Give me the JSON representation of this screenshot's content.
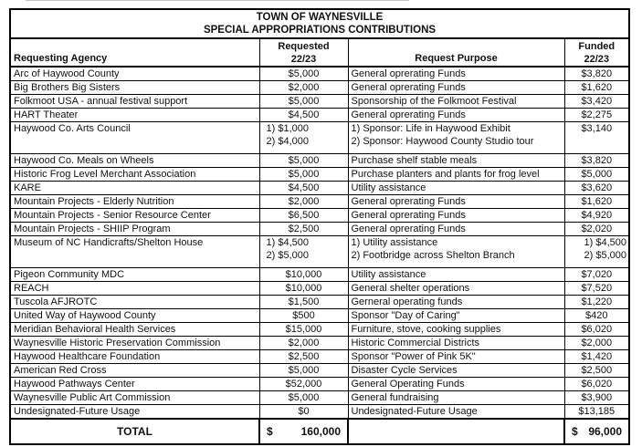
{
  "title": {
    "line1": "TOWN OF WAYNESVILLE",
    "line2": "SPECIAL APPROPRIATIONS CONTRIBUTIONS"
  },
  "header": {
    "agency": "Requesting Agency",
    "requested": [
      "Requested",
      "22/23"
    ],
    "purpose": "Request Purpose",
    "funded": [
      "Funded",
      "22/23"
    ]
  },
  "rows": [
    {
      "agency": "Arc of Haywood County",
      "requested": [
        "$5,000"
      ],
      "purpose": [
        "General oprerating Funds"
      ],
      "funded": [
        "$3,820"
      ],
      "tall": false
    },
    {
      "agency": "Big Brothers Big Sisters",
      "requested": [
        "$2,000"
      ],
      "purpose": [
        "General oprerating Funds"
      ],
      "funded": [
        "$1,620"
      ],
      "tall": false
    },
    {
      "agency": "Folkmoot USA - annual festival support",
      "requested": [
        "$5,000"
      ],
      "purpose": [
        "Sponsorship of the Folkmoot Festival"
      ],
      "funded": [
        "$3,420"
      ],
      "tall": false
    },
    {
      "agency": "HART Theater",
      "requested": [
        "$4,500"
      ],
      "purpose": [
        "General oprerating Funds"
      ],
      "funded": [
        "$2,275"
      ],
      "tall": false
    },
    {
      "agency": "Haywood Co. Arts Council",
      "requested": [
        "1) $1,000",
        "2) $4,000"
      ],
      "purpose": [
        "1) Sponsor: Life in Haywood Exhibit",
        "2) Sponsor: Haywood County Studio tour"
      ],
      "funded": [
        "$3,140"
      ],
      "tall": true
    },
    {
      "agency": "Haywood Co. Meals on Wheels",
      "requested": [
        "$5,000"
      ],
      "purpose": [
        "Purchase shelf stable meals"
      ],
      "funded": [
        "$3,820"
      ],
      "tall": false
    },
    {
      "agency": "Historic Frog Level Merchant Association",
      "requested": [
        "$5,000"
      ],
      "purpose": [
        "Purchase planters and plants for frog level"
      ],
      "funded": [
        "$5,000"
      ],
      "tall": false
    },
    {
      "agency": "KARE",
      "requested": [
        "$4,500"
      ],
      "purpose": [
        "Utility assistance"
      ],
      "funded": [
        "$3,620"
      ],
      "tall": false
    },
    {
      "agency": "Mountain Projects - Elderly Nutrition",
      "requested": [
        "$2,000"
      ],
      "purpose": [
        "General oprerating Funds"
      ],
      "funded": [
        "$1,620"
      ],
      "tall": false
    },
    {
      "agency": "Mountain Projects - Senior Resource Center",
      "requested": [
        "$6,500"
      ],
      "purpose": [
        "General oprerating Funds"
      ],
      "funded": [
        "$4,920"
      ],
      "tall": false
    },
    {
      "agency": "Mountain Projects - SHIIP Program",
      "requested": [
        "$2,500"
      ],
      "purpose": [
        "General oprerating Funds"
      ],
      "funded": [
        "$2,020"
      ],
      "tall": false
    },
    {
      "agency": "Museum of NC Handicrafts/Shelton House",
      "requested": [
        "1) $4,500",
        "2) $5,000"
      ],
      "purpose": [
        "1) Utility assistance",
        "2) Footbridge across Shelton Branch"
      ],
      "funded": [
        "1) $4,500",
        "2) $5,000"
      ],
      "tall": true
    },
    {
      "agency": "Pigeon Community MDC",
      "requested": [
        "$10,000"
      ],
      "purpose": [
        "Utility assistance"
      ],
      "funded": [
        "$7,020"
      ],
      "tall": false
    },
    {
      "agency": "REACH",
      "requested": [
        "$10,000"
      ],
      "purpose": [
        "General shelter operations"
      ],
      "funded": [
        "$7,520"
      ],
      "tall": false
    },
    {
      "agency": "Tuscola AFJROTC",
      "requested": [
        "$1,500"
      ],
      "purpose": [
        "Gerneral operating funds"
      ],
      "funded": [
        "$1,220"
      ],
      "tall": false
    },
    {
      "agency": "United Way of Haywood County",
      "requested": [
        "$500"
      ],
      "purpose": [
        "Sponsor \"Day of Caring\""
      ],
      "funded": [
        "$420"
      ],
      "tall": false
    },
    {
      "agency": "Meridian Behavioral Health Services",
      "requested": [
        "$15,000"
      ],
      "purpose": [
        "Furniture, stove, cooking supplies"
      ],
      "funded": [
        "$6,020"
      ],
      "tall": false
    },
    {
      "agency": "Waynesville Historic Preservation Commission",
      "requested": [
        "$2,000"
      ],
      "purpose": [
        "Historic Commercial Districts"
      ],
      "funded": [
        "$2,000"
      ],
      "tall": false
    },
    {
      "agency": "Haywood Healthcare Foundation",
      "requested": [
        "$2,500"
      ],
      "purpose": [
        "Sponsor \"Power of Pink 5K\""
      ],
      "funded": [
        "$1,420"
      ],
      "tall": false
    },
    {
      "agency": "American Red Cross",
      "requested": [
        "$5,000"
      ],
      "purpose": [
        "Disaster Cycle Services"
      ],
      "funded": [
        "$2,500"
      ],
      "tall": false
    },
    {
      "agency": "Haywood Pathways Center",
      "requested": [
        "$52,000"
      ],
      "purpose": [
        "General Operating Funds"
      ],
      "funded": [
        "$6,020"
      ],
      "tall": false
    },
    {
      "agency": "Waynesville Public Art Commission",
      "requested": [
        "$5,000"
      ],
      "purpose": [
        "General fundraising"
      ],
      "funded": [
        "$3,900"
      ],
      "tall": false
    },
    {
      "agency": "Undesignated-Future Usage",
      "requested": [
        "$0"
      ],
      "purpose": [
        "Undesignated-Future Usage"
      ],
      "funded": [
        "$13,185"
      ],
      "tall": false
    }
  ],
  "total": {
    "label": "TOTAL",
    "requested": {
      "currency": "$",
      "amount": "160,000"
    },
    "funded": {
      "currency": "$",
      "amount": "96,000"
    }
  }
}
